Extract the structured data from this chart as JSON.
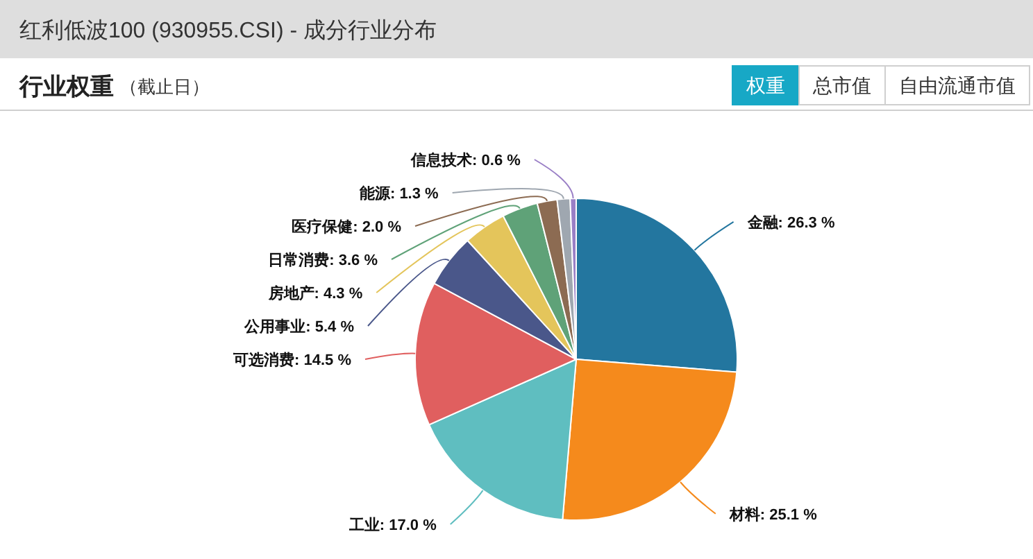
{
  "chart_data": {
    "type": "pie",
    "title": "红利低波100 (930955.CSI) - 成分行业分布",
    "subtitle": "行业权重",
    "annotations": [
      "（截止日）",
      "权重",
      "总市值",
      "自由流通市值"
    ],
    "categories": [
      "金融",
      "材料",
      "工业",
      "可选消费",
      "公用事业",
      "房地产",
      "日常消费",
      "医疗保健",
      "能源",
      "信息技术"
    ],
    "values": [
      26.3,
      25.1,
      17.0,
      14.5,
      5.4,
      4.3,
      3.6,
      2.0,
      1.3,
      0.6
    ],
    "value_labels": [
      "26.3 %",
      "25.1 %",
      "17.0 %",
      "14.5 %",
      "5.4 %",
      "4.3 %",
      "3.6 %",
      "2.0 %",
      "1.3 %",
      "0.6 %"
    ],
    "colors": [
      "#23769f",
      "#f58a1c",
      "#5fbec0",
      "#e05f5f",
      "#4a578a",
      "#e4c55b",
      "#5fa278",
      "#8c6b52",
      "#9fa7b0",
      "#9a7fc6"
    ]
  }
}
